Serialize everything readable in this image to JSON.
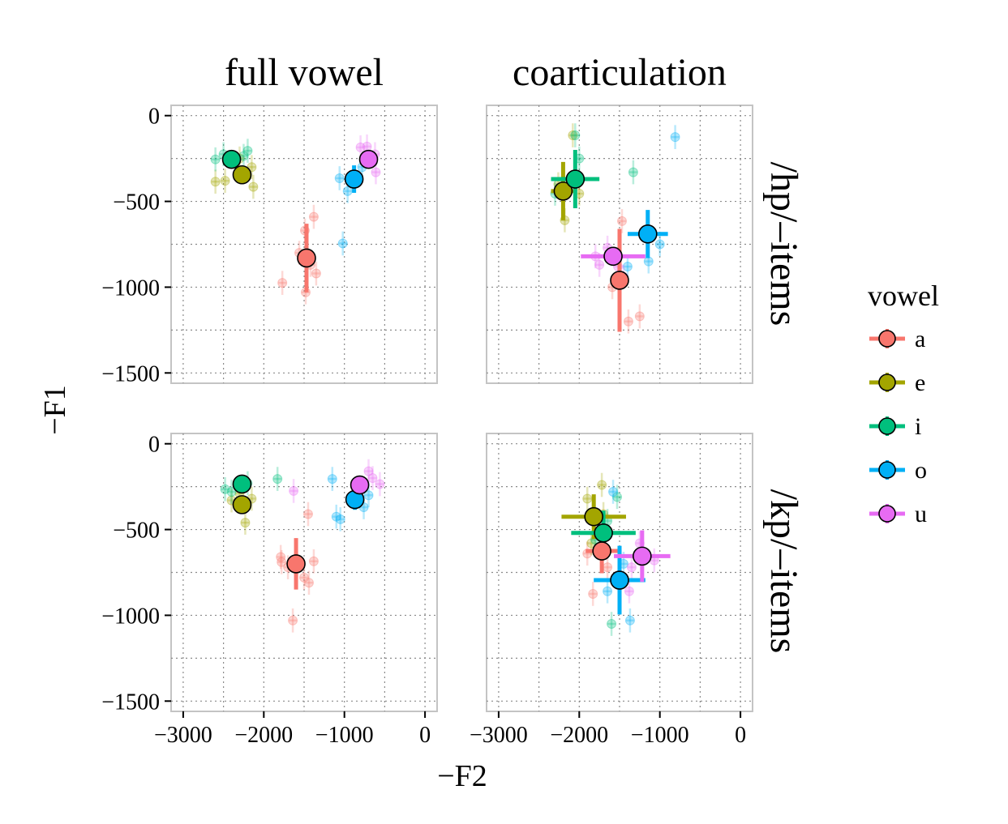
{
  "chart_data": {
    "type": "scatter",
    "xlabel": "−F2",
    "ylabel": "−F1",
    "xlim": [
      -3150,
      150
    ],
    "ylim": [
      -1560,
      60
    ],
    "x_ticks": [
      -3000,
      -2000,
      -1000,
      0
    ],
    "x_tick_labels": [
      "−3000",
      "−2000",
      "−1000",
      "0"
    ],
    "y_ticks": [
      0,
      -500,
      -1000,
      -1500
    ],
    "y_tick_labels": [
      "0",
      "−500",
      "−1000",
      "−1500"
    ],
    "grid": true,
    "legend": {
      "title": "vowel",
      "placement": "right",
      "entries": [
        {
          "key": "a",
          "label": "a",
          "color": "#F8766D"
        },
        {
          "key": "e",
          "label": "e",
          "color": "#A3A500"
        },
        {
          "key": "i",
          "label": "i",
          "color": "#00BF7D"
        },
        {
          "key": "o",
          "label": "o",
          "color": "#00B0F6"
        },
        {
          "key": "u",
          "label": "u",
          "color": "#E76BF3"
        }
      ]
    },
    "columns": [
      "full vowel",
      "coarticulation"
    ],
    "rows": [
      "/hp/–items",
      "/kp/–items"
    ],
    "panels": [
      {
        "column": "full vowel",
        "row": "/hp/–items",
        "means": [
          {
            "vowel": "a",
            "x": -1470,
            "y": -830,
            "xerr": 60,
            "yerr": 200
          },
          {
            "vowel": "e",
            "x": -2270,
            "y": -345,
            "xerr": 40,
            "yerr": 40
          },
          {
            "vowel": "i",
            "x": -2400,
            "y": -255,
            "xerr": 40,
            "yerr": 30
          },
          {
            "vowel": "o",
            "x": -880,
            "y": -370,
            "xerr": 60,
            "yerr": 80
          },
          {
            "vowel": "u",
            "x": -700,
            "y": -255,
            "xerr": 60,
            "yerr": 40
          }
        ],
        "items": [
          {
            "vowel": "a",
            "x": -1380,
            "y": -590
          },
          {
            "vowel": "a",
            "x": -1490,
            "y": -670
          },
          {
            "vowel": "a",
            "x": -1420,
            "y": -870
          },
          {
            "vowel": "a",
            "x": -1350,
            "y": -920
          },
          {
            "vowel": "a",
            "x": -1770,
            "y": -975
          },
          {
            "vowel": "a",
            "x": -1480,
            "y": -1030
          },
          {
            "vowel": "a",
            "x": -1560,
            "y": -800
          },
          {
            "vowel": "e",
            "x": -2600,
            "y": -385
          },
          {
            "vowel": "e",
            "x": -2480,
            "y": -380
          },
          {
            "vowel": "e",
            "x": -2150,
            "y": -300
          },
          {
            "vowel": "e",
            "x": -2130,
            "y": -415
          },
          {
            "vowel": "e",
            "x": -2300,
            "y": -250
          },
          {
            "vowel": "i",
            "x": -2600,
            "y": -255
          },
          {
            "vowel": "i",
            "x": -2200,
            "y": -205
          },
          {
            "vowel": "i",
            "x": -2500,
            "y": -225
          },
          {
            "vowel": "i",
            "x": -2250,
            "y": -235
          },
          {
            "vowel": "o",
            "x": -1060,
            "y": -365
          },
          {
            "vowel": "o",
            "x": -1020,
            "y": -745
          },
          {
            "vowel": "o",
            "x": -960,
            "y": -440
          },
          {
            "vowel": "o",
            "x": -780,
            "y": -300
          },
          {
            "vowel": "u",
            "x": -800,
            "y": -185
          },
          {
            "vowel": "u",
            "x": -620,
            "y": -225
          },
          {
            "vowel": "u",
            "x": -610,
            "y": -330
          },
          {
            "vowel": "u",
            "x": -720,
            "y": -180
          }
        ]
      },
      {
        "column": "coarticulation",
        "row": "/hp/–items",
        "means": [
          {
            "vowel": "a",
            "x": -1500,
            "y": -960,
            "xerr": 80,
            "yerr": 300
          },
          {
            "vowel": "e",
            "x": -2200,
            "y": -440,
            "xerr": 150,
            "yerr": 170
          },
          {
            "vowel": "i",
            "x": -2050,
            "y": -370,
            "xerr": 300,
            "yerr": 170
          },
          {
            "vowel": "o",
            "x": -1150,
            "y": -690,
            "xerr": 250,
            "yerr": 140
          },
          {
            "vowel": "u",
            "x": -1580,
            "y": -820,
            "xerr": 400,
            "yerr": 50
          }
        ],
        "items": [
          {
            "vowel": "a",
            "x": -1470,
            "y": -615
          },
          {
            "vowel": "a",
            "x": -1250,
            "y": -1170
          },
          {
            "vowel": "a",
            "x": -1390,
            "y": -1200
          },
          {
            "vowel": "a",
            "x": -1590,
            "y": -1000
          },
          {
            "vowel": "e",
            "x": -2080,
            "y": -115
          },
          {
            "vowel": "e",
            "x": -2000,
            "y": -455
          },
          {
            "vowel": "e",
            "x": -2180,
            "y": -610
          },
          {
            "vowel": "e",
            "x": -2260,
            "y": -400
          },
          {
            "vowel": "i",
            "x": -2050,
            "y": -115
          },
          {
            "vowel": "i",
            "x": -1330,
            "y": -330
          },
          {
            "vowel": "i",
            "x": -2300,
            "y": -455
          },
          {
            "vowel": "i",
            "x": -2000,
            "y": -250
          },
          {
            "vowel": "o",
            "x": -810,
            "y": -125
          },
          {
            "vowel": "o",
            "x": -1140,
            "y": -850
          },
          {
            "vowel": "o",
            "x": -1000,
            "y": -750
          },
          {
            "vowel": "o",
            "x": -1400,
            "y": -880
          },
          {
            "vowel": "u",
            "x": -1750,
            "y": -870
          },
          {
            "vowel": "u",
            "x": -1650,
            "y": -770
          },
          {
            "vowel": "u",
            "x": -1520,
            "y": -880
          },
          {
            "vowel": "u",
            "x": -1450,
            "y": -940
          },
          {
            "vowel": "u",
            "x": -1800,
            "y": -820
          }
        ]
      },
      {
        "column": "full vowel",
        "row": "/kp/–items",
        "means": [
          {
            "vowel": "a",
            "x": -1600,
            "y": -700,
            "xerr": 50,
            "yerr": 150
          },
          {
            "vowel": "e",
            "x": -2270,
            "y": -355,
            "xerr": 40,
            "yerr": 30
          },
          {
            "vowel": "i",
            "x": -2270,
            "y": -235,
            "xerr": 40,
            "yerr": 30
          },
          {
            "vowel": "o",
            "x": -870,
            "y": -325,
            "xerr": 50,
            "yerr": 60
          },
          {
            "vowel": "u",
            "x": -810,
            "y": -240,
            "xerr": 50,
            "yerr": 30
          }
        ],
        "items": [
          {
            "vowel": "a",
            "x": -1450,
            "y": -410
          },
          {
            "vowel": "a",
            "x": -1790,
            "y": -660
          },
          {
            "vowel": "a",
            "x": -1780,
            "y": -690
          },
          {
            "vowel": "a",
            "x": -1700,
            "y": -720
          },
          {
            "vowel": "a",
            "x": -1380,
            "y": -685
          },
          {
            "vowel": "a",
            "x": -1440,
            "y": -810
          },
          {
            "vowel": "a",
            "x": -1640,
            "y": -1030
          },
          {
            "vowel": "a",
            "x": -1500,
            "y": -780
          },
          {
            "vowel": "e",
            "x": -2230,
            "y": -460
          },
          {
            "vowel": "e",
            "x": -2150,
            "y": -320
          },
          {
            "vowel": "e",
            "x": -2400,
            "y": -330
          },
          {
            "vowel": "e",
            "x": -2300,
            "y": -290
          },
          {
            "vowel": "i",
            "x": -2480,
            "y": -265
          },
          {
            "vowel": "i",
            "x": -1830,
            "y": -205
          },
          {
            "vowel": "i",
            "x": -2400,
            "y": -280
          },
          {
            "vowel": "i",
            "x": -2200,
            "y": -230
          },
          {
            "vowel": "o",
            "x": -1150,
            "y": -205
          },
          {
            "vowel": "o",
            "x": -1100,
            "y": -425
          },
          {
            "vowel": "o",
            "x": -1050,
            "y": -440
          },
          {
            "vowel": "o",
            "x": -760,
            "y": -370
          },
          {
            "vowel": "o",
            "x": -700,
            "y": -300
          },
          {
            "vowel": "u",
            "x": -1630,
            "y": -275
          },
          {
            "vowel": "u",
            "x": -700,
            "y": -160
          },
          {
            "vowel": "u",
            "x": -560,
            "y": -235
          },
          {
            "vowel": "u",
            "x": -650,
            "y": -200
          }
        ]
      },
      {
        "column": "coarticulation",
        "row": "/kp/–items",
        "means": [
          {
            "vowel": "a",
            "x": -1720,
            "y": -625,
            "xerr": 200,
            "yerr": 130
          },
          {
            "vowel": "e",
            "x": -1820,
            "y": -425,
            "xerr": 400,
            "yerr": 130
          },
          {
            "vowel": "i",
            "x": -1700,
            "y": -520,
            "xerr": 400,
            "yerr": 130
          },
          {
            "vowel": "o",
            "x": -1500,
            "y": -795,
            "xerr": 320,
            "yerr": 200
          },
          {
            "vowel": "u",
            "x": -1220,
            "y": -655,
            "xerr": 350,
            "yerr": 150
          }
        ],
        "items": [
          {
            "vowel": "a",
            "x": -1830,
            "y": -875
          },
          {
            "vowel": "a",
            "x": -1900,
            "y": -640
          },
          {
            "vowel": "a",
            "x": -1650,
            "y": -720
          },
          {
            "vowel": "e",
            "x": -1720,
            "y": -240
          },
          {
            "vowel": "e",
            "x": -1900,
            "y": -320
          },
          {
            "vowel": "e",
            "x": -1700,
            "y": -410
          },
          {
            "vowel": "e",
            "x": -1850,
            "y": -580
          },
          {
            "vowel": "i",
            "x": -1600,
            "y": -1050
          },
          {
            "vowel": "i",
            "x": -1530,
            "y": -310
          },
          {
            "vowel": "i",
            "x": -1800,
            "y": -560
          },
          {
            "vowel": "i",
            "x": -1650,
            "y": -450
          },
          {
            "vowel": "o",
            "x": -1370,
            "y": -1030
          },
          {
            "vowel": "o",
            "x": -1580,
            "y": -280
          },
          {
            "vowel": "o",
            "x": -1650,
            "y": -860
          },
          {
            "vowel": "o",
            "x": -1450,
            "y": -700
          },
          {
            "vowel": "u",
            "x": -1380,
            "y": -860
          },
          {
            "vowel": "u",
            "x": -1070,
            "y": -680
          },
          {
            "vowel": "u",
            "x": -1350,
            "y": -720
          },
          {
            "vowel": "u",
            "x": -1250,
            "y": -580
          }
        ]
      }
    ]
  }
}
